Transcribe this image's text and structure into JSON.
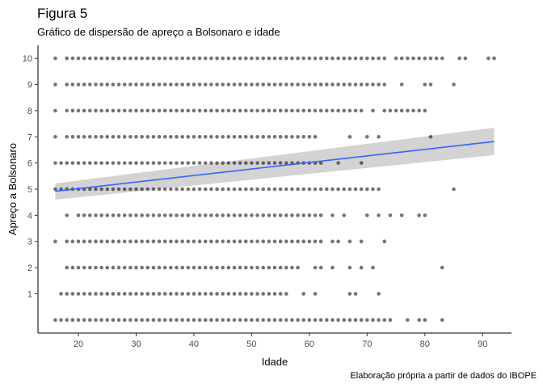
{
  "chart_data": {
    "type": "scatter",
    "title": "Figura 5",
    "subtitle": "Gráfico de dispersão de apreço a Bolsonaro e idade",
    "xlabel": "Idade",
    "ylabel": "Apreço a Bolsonaro",
    "caption": "Elaboração própria a partir de dados do IBOPE",
    "xlim": [
      13,
      95
    ],
    "ylim": [
      -0.5,
      10.5
    ],
    "x_ticks": [
      20,
      30,
      40,
      50,
      60,
      70,
      80,
      90
    ],
    "y_ticks": [
      1,
      2,
      3,
      4,
      5,
      6,
      7,
      8,
      9,
      10
    ],
    "grid": false,
    "points_by_y": [
      {
        "y": 0,
        "ages": "16-74,77,79,80,83"
      },
      {
        "y": 1,
        "ages": "17-56,59,61,67,68,72"
      },
      {
        "y": 2,
        "ages": "18-58,61,62,64,67,69,71,83"
      },
      {
        "y": 3,
        "ages": "16,18-62,64,65,67,69,73"
      },
      {
        "y": 4,
        "ages": "18,20-62,64,66,70,72,74,76,79,80"
      },
      {
        "y": 5,
        "ages": "16-72,85"
      },
      {
        "y": 6,
        "ages": "16-62,65,69"
      },
      {
        "y": 7,
        "ages": "16,18-61,67,70,72,81"
      },
      {
        "y": 8,
        "ages": "16,18-69,71,73-80"
      },
      {
        "y": 9,
        "ages": "16,18-73,76,80,81,85"
      },
      {
        "y": 10,
        "ages": "16,18-73,75-83,86,87,91,92"
      }
    ],
    "trend_line": {
      "x": [
        16,
        92
      ],
      "y": [
        4.92,
        6.82
      ],
      "ci_low": [
        4.6,
        6.3
      ],
      "ci_high": [
        5.22,
        7.35
      ],
      "line_color": "#3366ff",
      "band_color": "#c8c8c8"
    },
    "point_color": "#000000"
  }
}
